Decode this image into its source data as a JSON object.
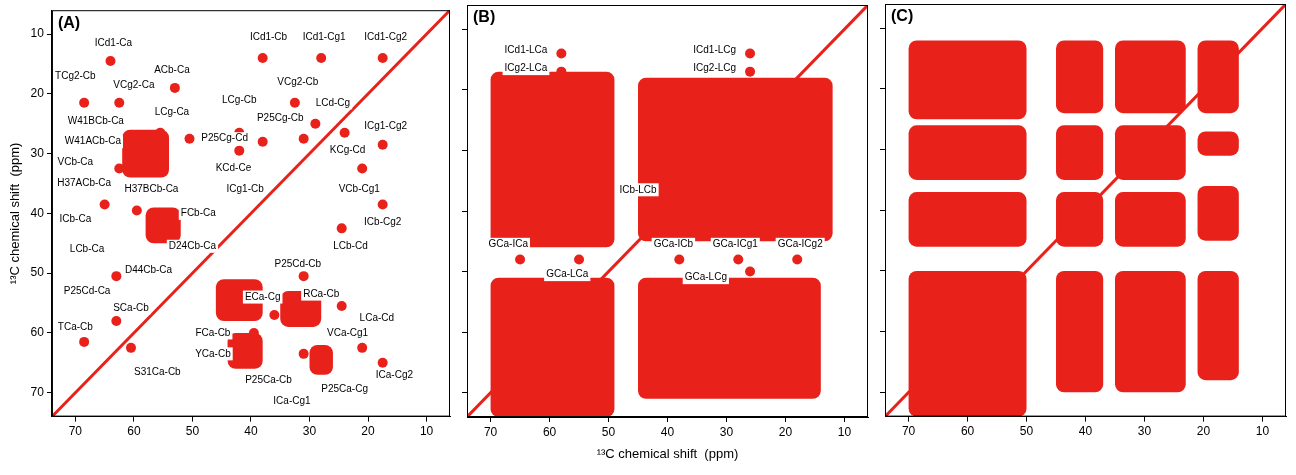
{
  "chart_data": [
    {
      "type": "scatter",
      "title": "(A)",
      "ylabel": "¹³C chemical shift  (ppm)",
      "xlim": [
        74,
        6
      ],
      "ylim": [
        74,
        6
      ],
      "xticks": [
        70,
        60,
        50,
        40,
        30,
        20,
        10
      ],
      "yticks": [
        10,
        20,
        30,
        40,
        50,
        60,
        70
      ],
      "grid": false,
      "color": "#e8221b",
      "series": [
        {
          "type": "line",
          "line_style": "solid",
          "x": [
            74,
            6
          ],
          "values": [
            74,
            6
          ]
        },
        {
          "type": "scatter",
          "marker": "circle",
          "x": [
            64,
            68.5,
            53,
            62.5,
            58,
            55.5,
            57,
            50.5,
            62.5,
            56,
            55,
            65,
            59.5,
            55.5,
            53.5,
            54.5,
            63,
            68.5,
            63,
            60.5,
            38,
            28,
            17.5,
            32.5,
            24,
            42,
            31,
            29,
            42,
            38,
            17.5,
            21,
            17.5,
            24.5,
            31,
            36,
            30,
            24.5,
            39.5,
            39,
            17.5,
            21,
            31,
            28,
            27
          ],
          "values": [
            14.5,
            21.5,
            19,
            21.5,
            28,
            26.5,
            29.5,
            27.5,
            32.5,
            31.5,
            33,
            38.5,
            39.5,
            42.5,
            41,
            43.5,
            50.5,
            61.5,
            58,
            62.5,
            14,
            14,
            14,
            21.5,
            26.5,
            26.5,
            27.5,
            25,
            29.5,
            28,
            28.5,
            32.5,
            38.5,
            42.5,
            50.5,
            57,
            56.5,
            55.5,
            60,
            62,
            65,
            62.5,
            63.5,
            65.5,
            63.5
          ]
        }
      ],
      "regions": [
        {
          "x": [
            46,
            38
          ],
          "y": [
            51,
            58
          ]
        },
        {
          "x": [
            35,
            28
          ],
          "y": [
            53,
            59
          ]
        },
        {
          "x": [
            44,
            38
          ],
          "y": [
            60,
            66
          ]
        },
        {
          "x": [
            62,
            54
          ],
          "y": [
            26,
            34
          ]
        },
        {
          "x": [
            58,
            52
          ],
          "y": [
            39,
            45
          ]
        },
        {
          "x": [
            30,
            26
          ],
          "y": [
            62,
            67
          ]
        }
      ],
      "annotations": [
        {
          "text": "ICd1-Ca",
          "x": 63.5,
          "y": 11.5
        },
        {
          "text": "TCg2-Cb",
          "x": 70,
          "y": 17
        },
        {
          "text": "ACb-Ca",
          "x": 53.5,
          "y": 16
        },
        {
          "text": "VCg2-Ca",
          "x": 60,
          "y": 18.5
        },
        {
          "text": "W41BCb-Ca",
          "x": 66.5,
          "y": 24.5
        },
        {
          "text": "LCg-Ca",
          "x": 53.5,
          "y": 23
        },
        {
          "text": "W41ACb-Ca",
          "x": 67,
          "y": 28
        },
        {
          "text": "P25Cg-Cd",
          "x": 44.5,
          "y": 27.5
        },
        {
          "text": "VCb-Ca",
          "x": 70,
          "y": 31.5
        },
        {
          "text": "H37ACb-Ca",
          "x": 68.5,
          "y": 35
        },
        {
          "text": "H37BCb-Ca",
          "x": 57,
          "y": 36
        },
        {
          "text": "ICb-Ca",
          "x": 70,
          "y": 41
        },
        {
          "text": "FCb-Ca",
          "x": 49,
          "y": 40
        },
        {
          "text": "LCb-Ca",
          "x": 68,
          "y": 46
        },
        {
          "text": "D24Cb-Ca",
          "x": 50,
          "y": 45.5
        },
        {
          "text": "D44Cb-Ca",
          "x": 57.5,
          "y": 49.5
        },
        {
          "text": "P25Cd-Ca",
          "x": 68,
          "y": 53
        },
        {
          "text": "SCa-Cb",
          "x": 60.5,
          "y": 55.8
        },
        {
          "text": "TCa-Cb",
          "x": 70,
          "y": 59
        },
        {
          "text": "S31Ca-Cb",
          "x": 56,
          "y": 66.5
        },
        {
          "text": "ICd1-Cb",
          "x": 37,
          "y": 10.5
        },
        {
          "text": "ICd1-Cg1",
          "x": 27.5,
          "y": 10.5
        },
        {
          "text": "ICd1-Cg2",
          "x": 17,
          "y": 10.5
        },
        {
          "text": "LCg-Cb",
          "x": 42,
          "y": 21
        },
        {
          "text": "VCg2-Cb",
          "x": 32,
          "y": 18
        },
        {
          "text": "LCd-Cg",
          "x": 26,
          "y": 21.5
        },
        {
          "text": "P25Cg-Cb",
          "x": 35,
          "y": 24
        },
        {
          "text": "KCg-Cd",
          "x": 23.5,
          "y": 29.5
        },
        {
          "text": "KCd-Ce",
          "x": 43,
          "y": 32.5
        },
        {
          "text": "ICg1-Cb",
          "x": 41,
          "y": 36
        },
        {
          "text": "ICg1-Cg2",
          "x": 17,
          "y": 25.5
        },
        {
          "text": "VCb-Cg1",
          "x": 21.5,
          "y": 36
        },
        {
          "text": "ICb-Cg2",
          "x": 17.5,
          "y": 41.5
        },
        {
          "text": "LCb-Cd",
          "x": 23,
          "y": 45.5
        },
        {
          "text": "P25Cd-Cb",
          "x": 32,
          "y": 48.5
        },
        {
          "text": "ECa-Cg",
          "x": 38,
          "y": 54
        },
        {
          "text": "RCa-Cb",
          "x": 28,
          "y": 53.5
        },
        {
          "text": "LCa-Cd",
          "x": 18.5,
          "y": 57.5
        },
        {
          "text": "FCa-Cb",
          "x": 46.5,
          "y": 60
        },
        {
          "text": "YCa-Cb",
          "x": 46.5,
          "y": 63.5
        },
        {
          "text": "VCa-Cg1",
          "x": 23.5,
          "y": 60
        },
        {
          "text": "ICa-Cg2",
          "x": 15.5,
          "y": 67
        },
        {
          "text": "P25Ca-Cb",
          "x": 37,
          "y": 68
        },
        {
          "text": "ICa-Cg1",
          "x": 33,
          "y": 71.5
        },
        {
          "text": "P25Ca-Cg",
          "x": 24,
          "y": 69.5
        }
      ]
    },
    {
      "type": "scatter",
      "title": "(B)",
      "xlabel": "¹³C chemical shift  (ppm)",
      "xlim": [
        74,
        6
      ],
      "ylim": [
        74,
        6
      ],
      "xticks": [
        70,
        60,
        50,
        40,
        30,
        20,
        10
      ],
      "yticks": [
        10,
        20,
        30,
        40,
        50,
        60,
        70
      ],
      "grid": false,
      "tick_labels": "x",
      "color": "#e8221b",
      "series": [
        {
          "type": "line",
          "line_style": "solid",
          "x": [
            74,
            6
          ],
          "values": [
            74,
            6
          ]
        },
        {
          "type": "scatter",
          "marker": "circle",
          "x": [
            58,
            58,
            26,
            26,
            40,
            65,
            55,
            38,
            28,
            26,
            18
          ],
          "values": [
            14,
            17,
            14,
            17,
            40,
            48,
            48,
            48,
            48,
            50,
            48
          ]
        }
      ],
      "regions": [
        {
          "x": [
            70,
            49
          ],
          "y": [
            17,
            46
          ]
        },
        {
          "x": [
            45,
            12
          ],
          "y": [
            18,
            45
          ]
        },
        {
          "x": [
            70,
            49
          ],
          "y": [
            51,
            74
          ]
        },
        {
          "x": [
            45,
            14
          ],
          "y": [
            51,
            71
          ]
        }
      ],
      "annotations": [
        {
          "text": "ICd1-LCa",
          "x": 64,
          "y": 13.5
        },
        {
          "text": "ICg2-LCa",
          "x": 64,
          "y": 16.5
        },
        {
          "text": "ICd1-LCg",
          "x": 32,
          "y": 13.5
        },
        {
          "text": "ICg2-LCg",
          "x": 32,
          "y": 16.5
        },
        {
          "text": "ICb-LCb",
          "x": 45,
          "y": 36.5
        },
        {
          "text": "GCa-ICa",
          "x": 67,
          "y": 45.5
        },
        {
          "text": "GCa-LCa",
          "x": 57,
          "y": 50.5
        },
        {
          "text": "GCa-ICb",
          "x": 39,
          "y": 45.5
        },
        {
          "text": "GCa-ICg1",
          "x": 28.5,
          "y": 45.5
        },
        {
          "text": "GCa-LCg",
          "x": 33.5,
          "y": 51
        },
        {
          "text": "GCa-ICg2",
          "x": 17.5,
          "y": 45.5
        }
      ]
    },
    {
      "type": "scatter",
      "title": "(C)",
      "xlim": [
        74,
        6
      ],
      "ylim": [
        74,
        6
      ],
      "xticks": [
        70,
        60,
        50,
        40,
        30,
        20,
        10
      ],
      "yticks": [
        10,
        20,
        30,
        40,
        50,
        60,
        70
      ],
      "grid": false,
      "tick_labels": "x",
      "color": "#e8221b",
      "series": [
        {
          "type": "line",
          "line_style": "solid",
          "x": [
            74,
            6
          ],
          "values": [
            74,
            6
          ]
        }
      ],
      "regions": [
        {
          "x": [
            70,
            50
          ],
          "y": [
            12,
            25
          ]
        },
        {
          "x": [
            70,
            50
          ],
          "y": [
            26,
            35
          ]
        },
        {
          "x": [
            70,
            50
          ],
          "y": [
            37,
            46
          ]
        },
        {
          "x": [
            70,
            50
          ],
          "y": [
            50,
            74
          ]
        },
        {
          "x": [
            45,
            37
          ],
          "y": [
            12,
            24
          ]
        },
        {
          "x": [
            45,
            37
          ],
          "y": [
            26,
            35
          ]
        },
        {
          "x": [
            45,
            37
          ],
          "y": [
            37,
            46
          ]
        },
        {
          "x": [
            45,
            37
          ],
          "y": [
            50,
            70
          ]
        },
        {
          "x": [
            35,
            23
          ],
          "y": [
            12,
            24
          ]
        },
        {
          "x": [
            35,
            23
          ],
          "y": [
            26,
            35
          ]
        },
        {
          "x": [
            35,
            23
          ],
          "y": [
            37,
            46
          ]
        },
        {
          "x": [
            35,
            23
          ],
          "y": [
            50,
            70
          ]
        },
        {
          "x": [
            21,
            14
          ],
          "y": [
            12,
            24
          ]
        },
        {
          "x": [
            21,
            14
          ],
          "y": [
            27,
            31
          ]
        },
        {
          "x": [
            21,
            14
          ],
          "y": [
            36,
            45
          ]
        },
        {
          "x": [
            21,
            14
          ],
          "y": [
            50,
            68
          ]
        }
      ],
      "annotations": []
    }
  ]
}
